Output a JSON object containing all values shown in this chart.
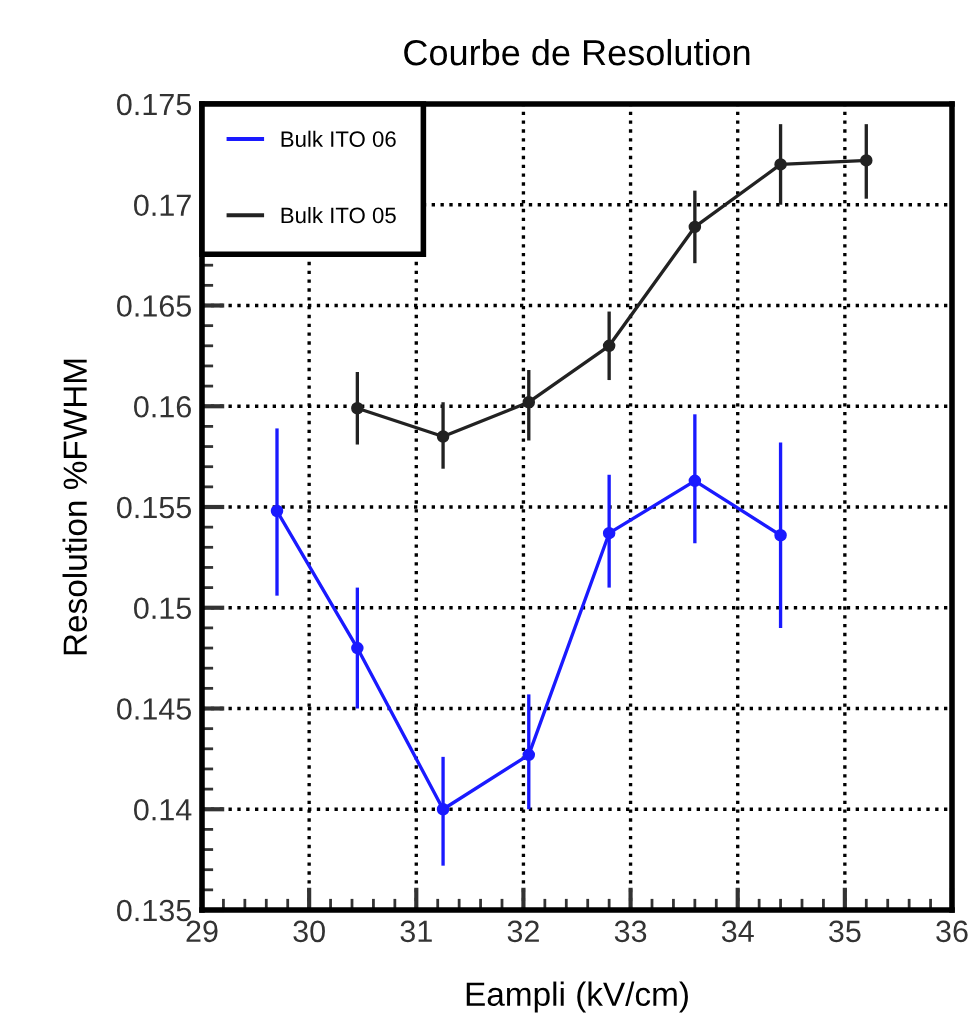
{
  "chart_data": {
    "type": "line",
    "title": "Courbe de Resolution",
    "xlabel": "Eampli (kV/cm)",
    "ylabel": "Resolution %FWHM",
    "xlim": [
      29,
      36
    ],
    "xticks": [
      29,
      30,
      31,
      32,
      33,
      34,
      35,
      36
    ],
    "ylim": [
      0.135,
      0.175
    ],
    "yticks": [
      0.135,
      0.14,
      0.145,
      0.15,
      0.155,
      0.16,
      0.165,
      0.17,
      0.175
    ],
    "grid": true,
    "legend": "top left",
    "marker": "circle",
    "line_style": "solid",
    "series": [
      {
        "name": "Bulk ITO 06",
        "color": "#1a1aff",
        "x": [
          29.7,
          30.45,
          31.25,
          32.05,
          32.8,
          33.6,
          34.4
        ],
        "values": [
          0.1548,
          0.148,
          0.14,
          0.1427,
          0.1537,
          0.1563,
          0.1536
        ],
        "errors": [
          [
            0.1506,
            0.1589
          ],
          [
            0.145,
            0.151
          ],
          [
            0.1372,
            0.1426
          ],
          [
            0.14,
            0.1457
          ],
          [
            0.151,
            0.1566
          ],
          [
            0.1532,
            0.1596
          ],
          [
            0.149,
            0.1582
          ]
        ]
      },
      {
        "name": "Bulk ITO 05",
        "color": "#222222",
        "x": [
          30.45,
          31.25,
          32.05,
          32.8,
          33.6,
          34.4,
          35.2
        ],
        "values": [
          0.1599,
          0.1585,
          0.1602,
          0.163,
          0.1689,
          0.172,
          0.1722
        ],
        "errors": [
          [
            0.1581,
            0.1617
          ],
          [
            0.1569,
            0.1602
          ],
          [
            0.1583,
            0.1618
          ],
          [
            0.1613,
            0.1647
          ],
          [
            0.1671,
            0.1707
          ],
          [
            0.17,
            0.174
          ],
          [
            0.1703,
            0.174
          ]
        ]
      }
    ]
  }
}
